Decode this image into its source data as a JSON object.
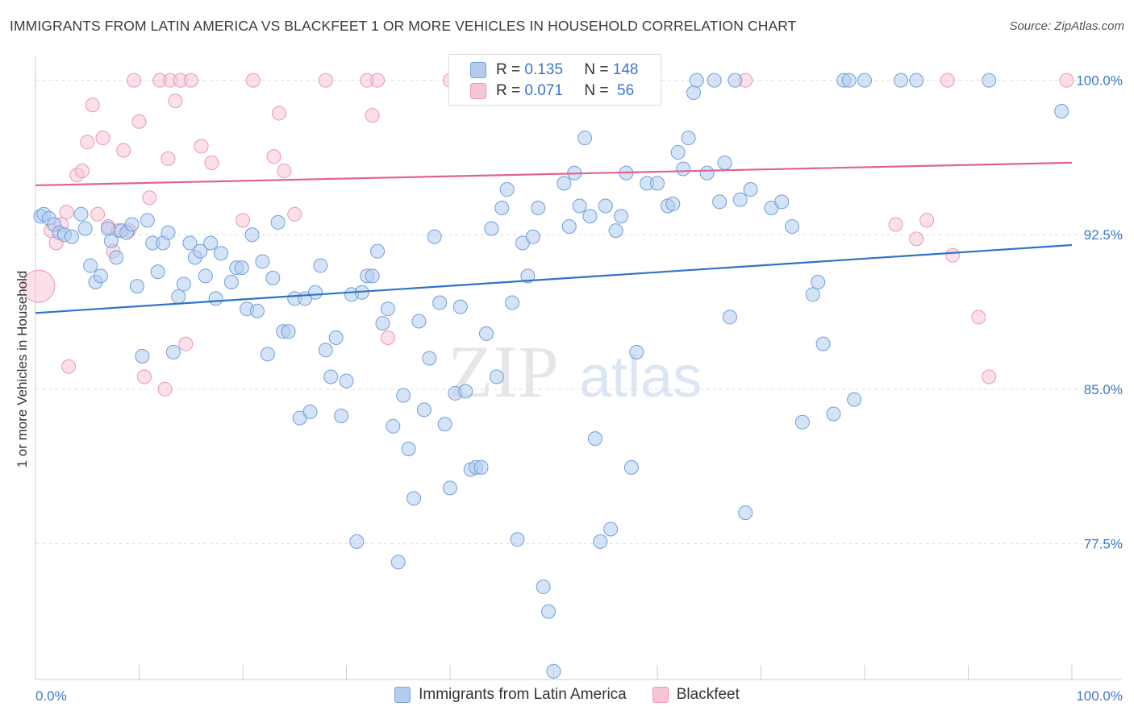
{
  "title": "IMMIGRANTS FROM LATIN AMERICA VS BLACKFEET 1 OR MORE VEHICLES IN HOUSEHOLD CORRELATION CHART",
  "source": "Source: ZipAtlas.com",
  "watermark": {
    "zip": "ZIP",
    "atlas": "atlas"
  },
  "legend": {
    "r_label": "R =",
    "n_label": "N =",
    "series": [
      {
        "name": "Immigrants from Latin America",
        "r": "0.135",
        "n": "148"
      },
      {
        "name": "Blackfeet",
        "r": "0.071",
        "n": " 56"
      }
    ]
  },
  "colors": {
    "blue_fill": "#b3ccee",
    "blue_stroke": "#6f9fdc",
    "blue_line": "#2f72c8",
    "pink_fill": "#f7c6d6",
    "pink_stroke": "#ec97b2",
    "pink_line": "#e2628e",
    "tick_label": "#3a78c9",
    "grid": "#dddddd"
  },
  "chart_data": {
    "type": "scatter",
    "title": "IMMIGRANTS FROM LATIN AMERICA VS BLACKFEET 1 OR MORE VEHICLES IN HOUSEHOLD CORRELATION CHART",
    "xlabel": "",
    "ylabel": "1 or more Vehicles in Household",
    "xlim": [
      0,
      100
    ],
    "ylim": [
      70.9,
      101.2
    ],
    "x_tick_labels": [
      {
        "value": 0,
        "label": "0.0%"
      },
      {
        "value": 100,
        "label": "100.0%"
      }
    ],
    "y_ticks": [
      {
        "value": 100.0,
        "label": "100.0%"
      },
      {
        "value": 92.5,
        "label": "92.5%"
      },
      {
        "value": 85.0,
        "label": "85.0%"
      },
      {
        "value": 77.5,
        "label": "77.5%"
      }
    ],
    "series": [
      {
        "name": "Immigrants from Latin America",
        "trend": [
          [
            0,
            88.7
          ],
          [
            100,
            92.0
          ]
        ],
        "points": [
          [
            0.5,
            93.4
          ],
          [
            0.8,
            93.5
          ],
          [
            1.3,
            93.3
          ],
          [
            1.8,
            93.0
          ],
          [
            2.3,
            92.6
          ],
          [
            2.8,
            92.5
          ],
          [
            3.5,
            92.4
          ],
          [
            4.4,
            93.5
          ],
          [
            4.8,
            92.8
          ],
          [
            5.3,
            91.0
          ],
          [
            5.8,
            90.2
          ],
          [
            6.3,
            90.5
          ],
          [
            7.0,
            92.8
          ],
          [
            7.3,
            92.2
          ],
          [
            7.8,
            91.4
          ],
          [
            8.3,
            92.7
          ],
          [
            8.8,
            92.6
          ],
          [
            9.3,
            93.0
          ],
          [
            9.8,
            90.0
          ],
          [
            10.3,
            86.6
          ],
          [
            10.8,
            93.2
          ],
          [
            11.3,
            92.1
          ],
          [
            11.8,
            90.7
          ],
          [
            12.3,
            92.1
          ],
          [
            12.8,
            92.6
          ],
          [
            13.3,
            86.8
          ],
          [
            13.8,
            89.5
          ],
          [
            14.3,
            90.1
          ],
          [
            14.9,
            92.1
          ],
          [
            15.4,
            91.4
          ],
          [
            15.9,
            91.7
          ],
          [
            16.4,
            90.5
          ],
          [
            16.9,
            92.1
          ],
          [
            17.4,
            89.4
          ],
          [
            17.9,
            91.6
          ],
          [
            18.9,
            90.2
          ],
          [
            19.4,
            90.9
          ],
          [
            19.9,
            90.9
          ],
          [
            20.4,
            88.9
          ],
          [
            20.9,
            92.5
          ],
          [
            21.4,
            88.8
          ],
          [
            21.9,
            91.2
          ],
          [
            22.4,
            86.7
          ],
          [
            22.9,
            90.4
          ],
          [
            23.4,
            93.1
          ],
          [
            23.9,
            87.8
          ],
          [
            24.4,
            87.8
          ],
          [
            25.0,
            89.4
          ],
          [
            25.5,
            83.6
          ],
          [
            26.0,
            89.4
          ],
          [
            26.5,
            83.9
          ],
          [
            27.0,
            89.7
          ],
          [
            27.5,
            91.0
          ],
          [
            28.0,
            86.9
          ],
          [
            28.5,
            85.6
          ],
          [
            29.0,
            87.5
          ],
          [
            29.5,
            83.7
          ],
          [
            30.0,
            85.4
          ],
          [
            30.5,
            89.6
          ],
          [
            31.0,
            77.6
          ],
          [
            31.5,
            89.7
          ],
          [
            32.0,
            90.5
          ],
          [
            32.5,
            90.5
          ],
          [
            33.0,
            91.7
          ],
          [
            33.5,
            88.2
          ],
          [
            34.0,
            88.9
          ],
          [
            34.5,
            83.2
          ],
          [
            35.0,
            76.6
          ],
          [
            35.5,
            84.7
          ],
          [
            36.0,
            82.1
          ],
          [
            36.5,
            79.7
          ],
          [
            37.0,
            88.3
          ],
          [
            37.5,
            84.0
          ],
          [
            38.0,
            86.5
          ],
          [
            38.5,
            92.4
          ],
          [
            39.0,
            89.2
          ],
          [
            39.5,
            83.3
          ],
          [
            40.0,
            80.2
          ],
          [
            40.5,
            84.8
          ],
          [
            41.0,
            89.0
          ],
          [
            41.5,
            84.9
          ],
          [
            42.0,
            81.1
          ],
          [
            42.5,
            81.2
          ],
          [
            43.0,
            81.2
          ],
          [
            43.5,
            87.7
          ],
          [
            44.0,
            92.8
          ],
          [
            44.5,
            85.6
          ],
          [
            45.0,
            93.8
          ],
          [
            45.5,
            94.7
          ],
          [
            46.0,
            89.2
          ],
          [
            46.5,
            77.7
          ],
          [
            47.0,
            92.1
          ],
          [
            47.5,
            90.5
          ],
          [
            48.0,
            92.4
          ],
          [
            48.5,
            93.8
          ],
          [
            49.0,
            75.4
          ],
          [
            49.5,
            74.2
          ],
          [
            50.0,
            71.3
          ],
          [
            51.0,
            95.0
          ],
          [
            51.5,
            92.9
          ],
          [
            52.0,
            95.5
          ],
          [
            52.5,
            93.9
          ],
          [
            53.0,
            97.2
          ],
          [
            53.5,
            93.4
          ],
          [
            54.0,
            82.6
          ],
          [
            54.5,
            77.6
          ],
          [
            55.0,
            93.9
          ],
          [
            55.5,
            78.2
          ],
          [
            56.0,
            92.7
          ],
          [
            56.5,
            93.4
          ],
          [
            57.0,
            95.5
          ],
          [
            57.5,
            81.2
          ],
          [
            58.0,
            86.8
          ],
          [
            59.0,
            95.0
          ],
          [
            60.0,
            95.0
          ],
          [
            61.0,
            93.9
          ],
          [
            61.5,
            94.0
          ],
          [
            62.0,
            96.5
          ],
          [
            62.5,
            95.7
          ],
          [
            63.0,
            97.2
          ],
          [
            63.5,
            99.4
          ],
          [
            63.8,
            100.0
          ],
          [
            64.8,
            95.5
          ],
          [
            65.5,
            100.0
          ],
          [
            66.0,
            94.1
          ],
          [
            66.5,
            96.0
          ],
          [
            67.0,
            88.5
          ],
          [
            67.5,
            100.0
          ],
          [
            68.0,
            94.2
          ],
          [
            68.5,
            79.0
          ],
          [
            69.0,
            94.7
          ],
          [
            71.0,
            93.8
          ],
          [
            72.0,
            94.1
          ],
          [
            73.0,
            92.9
          ],
          [
            74.0,
            83.4
          ],
          [
            75.0,
            89.6
          ],
          [
            75.5,
            90.2
          ],
          [
            76.0,
            87.2
          ],
          [
            77.0,
            83.8
          ],
          [
            78.0,
            100.0
          ],
          [
            78.5,
            100.0
          ],
          [
            79.0,
            84.5
          ],
          [
            80.0,
            100.0
          ],
          [
            83.5,
            100.0
          ],
          [
            85.0,
            100.0
          ],
          [
            92.0,
            100.0
          ],
          [
            99.0,
            98.5
          ]
        ]
      },
      {
        "name": "Blackfeet",
        "trend": [
          [
            0,
            94.9
          ],
          [
            100,
            96.0
          ]
        ],
        "points": [
          [
            0.3,
            90.0
          ],
          [
            1.5,
            92.7
          ],
          [
            2.0,
            92.1
          ],
          [
            2.5,
            93.0
          ],
          [
            3.0,
            93.6
          ],
          [
            3.2,
            86.1
          ],
          [
            4.0,
            95.4
          ],
          [
            4.5,
            95.6
          ],
          [
            5.0,
            97.0
          ],
          [
            5.5,
            98.8
          ],
          [
            6.0,
            93.5
          ],
          [
            6.5,
            97.2
          ],
          [
            7.0,
            92.9
          ],
          [
            7.5,
            91.7
          ],
          [
            8.0,
            92.7
          ],
          [
            8.5,
            96.6
          ],
          [
            9.0,
            92.7
          ],
          [
            9.5,
            100.0
          ],
          [
            10.0,
            98.0
          ],
          [
            10.5,
            85.6
          ],
          [
            11.0,
            94.3
          ],
          [
            12.0,
            100.0
          ],
          [
            12.5,
            85.0
          ],
          [
            12.8,
            96.2
          ],
          [
            13.0,
            100.0
          ],
          [
            13.5,
            99.0
          ],
          [
            14.0,
            100.0
          ],
          [
            14.5,
            87.2
          ],
          [
            15.0,
            100.0
          ],
          [
            16.0,
            96.8
          ],
          [
            17.0,
            96.0
          ],
          [
            20.0,
            93.2
          ],
          [
            21.0,
            100.0
          ],
          [
            23.0,
            96.3
          ],
          [
            23.5,
            98.4
          ],
          [
            24.0,
            95.6
          ],
          [
            25.0,
            93.5
          ],
          [
            28.0,
            100.0
          ],
          [
            32.0,
            100.0
          ],
          [
            32.5,
            98.3
          ],
          [
            33.0,
            100.0
          ],
          [
            34.0,
            87.5
          ],
          [
            40.0,
            100.0
          ],
          [
            49.0,
            100.0
          ],
          [
            68.5,
            100.0
          ],
          [
            83.0,
            93.0
          ],
          [
            85.0,
            92.3
          ],
          [
            86.0,
            93.2
          ],
          [
            88.0,
            100.0
          ],
          [
            88.5,
            91.5
          ],
          [
            91.0,
            88.5
          ],
          [
            92.0,
            85.6
          ],
          [
            99.5,
            100.0
          ]
        ]
      }
    ]
  }
}
